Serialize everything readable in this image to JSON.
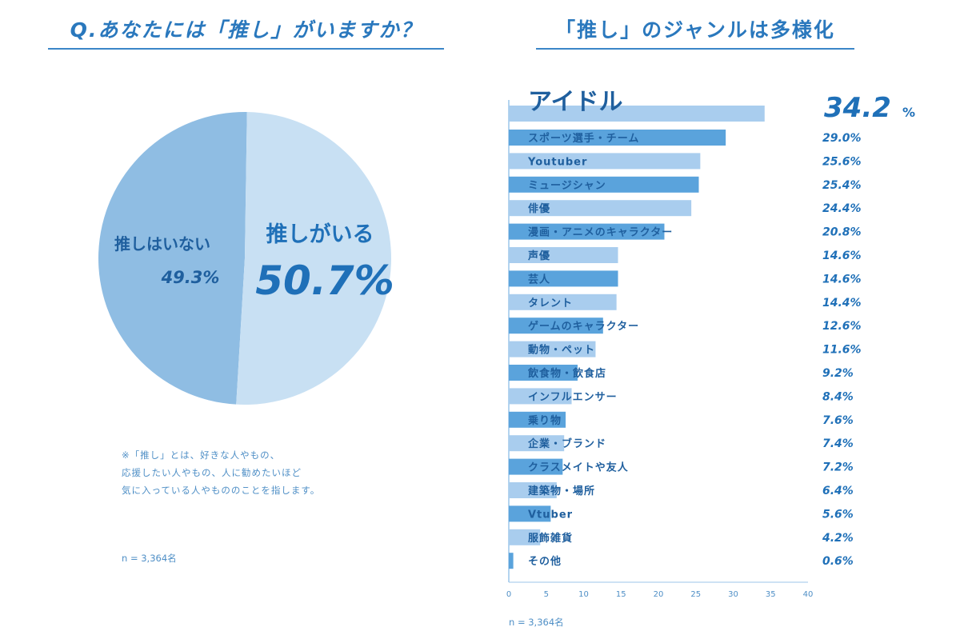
{
  "left": {
    "title": "Q.あなたには「推し」がいますか？",
    "note_lines": [
      "※「推し」とは、好きな人やもの、",
      "応援したい人やもの、人に勧めたいほど",
      "気に入っている人やもののことを指します。"
    ],
    "n_label": "n = 3,364名"
  },
  "right": {
    "title": "「推し」のジャンルは多様化",
    "n_label": "n = 3,364名"
  },
  "chart_data": [
    {
      "type": "pie",
      "slices": [
        {
          "label": "推しがいる",
          "value": 50.7,
          "value_label": "50.7%",
          "color": "#c8e0f3"
        },
        {
          "label": "推しはいない",
          "value": 49.3,
          "value_label": "49.3%",
          "color": "#8fbde3"
        }
      ]
    },
    {
      "type": "bar",
      "orientation": "horizontal",
      "xlim": [
        0,
        40
      ],
      "xticks": [
        0,
        5,
        10,
        15,
        20,
        25,
        30,
        35,
        40
      ],
      "colors": [
        "#a9cdee",
        "#5aa3dc"
      ],
      "categories": [
        "アイドル",
        "スポーツ選手・チーム",
        "Youtuber",
        "ミュージシャン",
        "俳優",
        "漫画・アニメのキャラクター",
        "声優",
        "芸人",
        "タレント",
        "ゲームのキャラクター",
        "動物・ペット",
        "飲食物・飲食店",
        "インフルエンサー",
        "乗り物",
        "企業・ブランド",
        "クラスメイトや友人",
        "建築物・場所",
        "Vtuber",
        "服飾雑貨",
        "その他"
      ],
      "values": [
        34.2,
        29.0,
        25.6,
        25.4,
        24.4,
        20.8,
        14.6,
        14.6,
        14.4,
        12.6,
        11.6,
        9.2,
        8.4,
        7.6,
        7.4,
        7.2,
        6.4,
        5.6,
        4.2,
        0.6
      ],
      "value_labels": [
        "34.2",
        "29.0%",
        "25.6%",
        "25.4%",
        "24.4%",
        "20.8%",
        "14.6%",
        "14.6%",
        "14.4%",
        "12.6%",
        "11.6%",
        "9.2%",
        "8.4%",
        "7.6%",
        "7.4%",
        "7.2%",
        "6.4%",
        "5.6%",
        "4.2%",
        "0.6%"
      ],
      "top_unit": "%"
    }
  ]
}
